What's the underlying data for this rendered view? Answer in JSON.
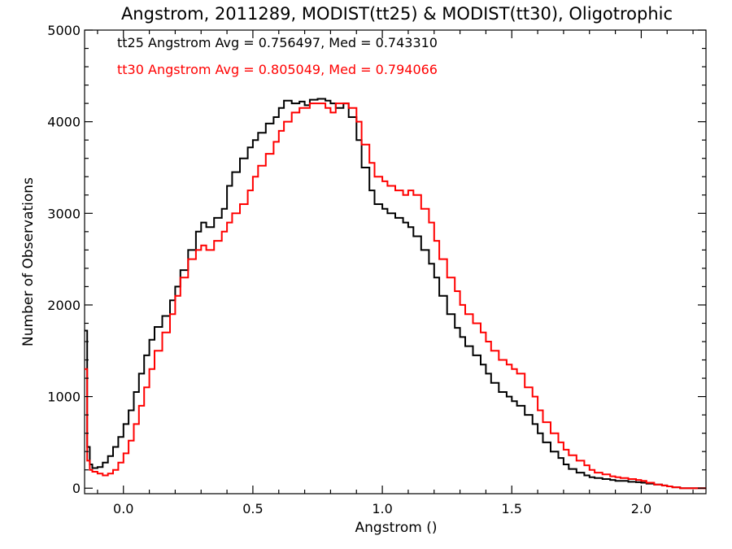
{
  "chart_data": {
    "type": "line",
    "title": "Angstrom, 2011289, MODIST(tt25) & MODIST(tt30), Oligotrophic",
    "xlabel": "Angstrom ()",
    "ylabel": "Number of Observations",
    "xlim": [
      -0.15,
      2.25
    ],
    "ylim": [
      -60,
      5000
    ],
    "xticks": [
      0.0,
      0.5,
      1.0,
      1.5,
      2.0
    ],
    "xtick_labels": [
      "0.0",
      "0.5",
      "1.0",
      "1.5",
      "2.0"
    ],
    "yticks": [
      0,
      1000,
      2000,
      3000,
      4000,
      5000
    ],
    "ytick_labels": [
      "0",
      "1000",
      "2000",
      "3000",
      "4000",
      "5000"
    ],
    "grid": false,
    "legend_placement": "top-left",
    "step_style": "histogram",
    "series": [
      {
        "name": "tt25 Angstrom Avg = 0.756497, Med = 0.743310",
        "color": "#000000",
        "x": [
          -0.15,
          -0.14,
          -0.13,
          -0.12,
          -0.1,
          -0.08,
          -0.06,
          -0.04,
          -0.02,
          0.0,
          0.02,
          0.04,
          0.06,
          0.08,
          0.1,
          0.12,
          0.15,
          0.18,
          0.2,
          0.22,
          0.25,
          0.28,
          0.3,
          0.32,
          0.35,
          0.38,
          0.4,
          0.42,
          0.45,
          0.48,
          0.5,
          0.52,
          0.55,
          0.58,
          0.6,
          0.62,
          0.65,
          0.68,
          0.7,
          0.72,
          0.75,
          0.78,
          0.8,
          0.82,
          0.85,
          0.87,
          0.9,
          0.92,
          0.95,
          0.97,
          1.0,
          1.02,
          1.05,
          1.08,
          1.1,
          1.12,
          1.15,
          1.18,
          1.2,
          1.22,
          1.25,
          1.28,
          1.3,
          1.32,
          1.35,
          1.38,
          1.4,
          1.42,
          1.45,
          1.48,
          1.5,
          1.52,
          1.55,
          1.58,
          1.6,
          1.62,
          1.65,
          1.68,
          1.7,
          1.72,
          1.75,
          1.78,
          1.8,
          1.82,
          1.85,
          1.88,
          1.9,
          1.92,
          1.95,
          1.98,
          2.0,
          2.02,
          2.05,
          2.08,
          2.1,
          2.12,
          2.15
        ],
        "y": [
          1720,
          450,
          260,
          220,
          230,
          280,
          350,
          450,
          560,
          700,
          850,
          1050,
          1250,
          1450,
          1620,
          1760,
          1880,
          2050,
          2200,
          2380,
          2600,
          2800,
          2900,
          2850,
          2950,
          3050,
          3300,
          3450,
          3600,
          3720,
          3800,
          3880,
          3980,
          4050,
          4150,
          4230,
          4200,
          4220,
          4180,
          4240,
          4250,
          4230,
          4200,
          4150,
          4200,
          4050,
          3800,
          3500,
          3250,
          3100,
          3050,
          3000,
          2950,
          2900,
          2850,
          2750,
          2600,
          2450,
          2300,
          2100,
          1900,
          1750,
          1650,
          1550,
          1450,
          1350,
          1250,
          1150,
          1050,
          1000,
          950,
          900,
          800,
          700,
          600,
          500,
          400,
          330,
          260,
          210,
          170,
          140,
          120,
          110,
          100,
          90,
          80,
          80,
          70,
          65,
          60,
          50,
          40,
          30,
          20,
          10,
          0
        ]
      },
      {
        "name": "tt30 Angstrom Avg = 0.805049, Med = 0.794066",
        "color": "#ff0000",
        "x": [
          -0.15,
          -0.14,
          -0.13,
          -0.12,
          -0.1,
          -0.08,
          -0.06,
          -0.04,
          -0.02,
          0.0,
          0.02,
          0.04,
          0.06,
          0.08,
          0.1,
          0.12,
          0.15,
          0.18,
          0.2,
          0.22,
          0.25,
          0.28,
          0.3,
          0.32,
          0.35,
          0.38,
          0.4,
          0.42,
          0.45,
          0.48,
          0.5,
          0.52,
          0.55,
          0.58,
          0.6,
          0.62,
          0.65,
          0.68,
          0.7,
          0.72,
          0.75,
          0.78,
          0.8,
          0.82,
          0.85,
          0.87,
          0.9,
          0.92,
          0.95,
          0.97,
          1.0,
          1.02,
          1.05,
          1.08,
          1.1,
          1.12,
          1.15,
          1.18,
          1.2,
          1.22,
          1.25,
          1.28,
          1.3,
          1.32,
          1.35,
          1.38,
          1.4,
          1.42,
          1.45,
          1.48,
          1.5,
          1.52,
          1.55,
          1.58,
          1.6,
          1.62,
          1.65,
          1.68,
          1.7,
          1.72,
          1.75,
          1.78,
          1.8,
          1.82,
          1.85,
          1.88,
          1.9,
          1.92,
          1.95,
          1.98,
          2.0,
          2.02,
          2.05,
          2.08,
          2.1,
          2.12,
          2.15
        ],
        "y": [
          1300,
          300,
          200,
          180,
          160,
          140,
          160,
          200,
          280,
          380,
          520,
          700,
          900,
          1100,
          1300,
          1500,
          1700,
          1900,
          2100,
          2300,
          2500,
          2600,
          2650,
          2600,
          2700,
          2800,
          2900,
          3000,
          3100,
          3250,
          3400,
          3520,
          3650,
          3780,
          3900,
          4000,
          4100,
          4150,
          4150,
          4200,
          4200,
          4150,
          4100,
          4200,
          4200,
          4150,
          4000,
          3750,
          3550,
          3400,
          3350,
          3300,
          3250,
          3200,
          3250,
          3200,
          3050,
          2900,
          2700,
          2500,
          2300,
          2150,
          2000,
          1900,
          1800,
          1700,
          1600,
          1500,
          1400,
          1350,
          1300,
          1250,
          1100,
          1000,
          850,
          720,
          600,
          500,
          420,
          360,
          300,
          250,
          200,
          170,
          150,
          130,
          120,
          110,
          100,
          90,
          80,
          60,
          40,
          30,
          20,
          10,
          0
        ]
      }
    ]
  }
}
